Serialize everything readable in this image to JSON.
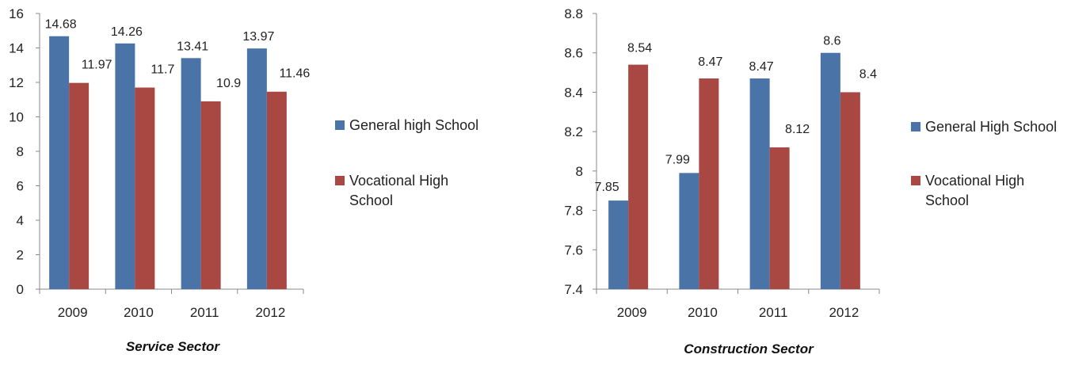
{
  "colors": {
    "general": "#4a74a8",
    "vocational": "#a94843",
    "axis": "#888888",
    "text": "#222222"
  },
  "chart_data": [
    {
      "type": "bar",
      "title": "Service Sector",
      "xlabel": "",
      "ylabel": "",
      "categories": [
        "2009",
        "2010",
        "2011",
        "2012"
      ],
      "ylim": [
        0,
        16
      ],
      "yticks": [
        0,
        2,
        4,
        6,
        8,
        10,
        12,
        14,
        16
      ],
      "ytick_labels": [
        "0",
        "2",
        "4",
        "6",
        "8",
        "10",
        "12",
        "14",
        "16"
      ],
      "grid": false,
      "legend_position": "right",
      "series": [
        {
          "name": "General high School",
          "color": "#4a74a8",
          "values": [
            14.68,
            14.26,
            13.41,
            13.97
          ],
          "labels": [
            "14.68",
            "14.26",
            "13.41",
            "13.97"
          ]
        },
        {
          "name": "Vocational High School",
          "legend_lines": [
            "Vocational High",
            "School"
          ],
          "color": "#a94843",
          "values": [
            11.97,
            11.7,
            10.9,
            11.46
          ],
          "labels": [
            "11.97",
            "11.7",
            "10.9",
            "11.46"
          ]
        }
      ]
    },
    {
      "type": "bar",
      "title": "Construction Sector",
      "xlabel": "",
      "ylabel": "",
      "categories": [
        "2009",
        "2010",
        "2011",
        "2012"
      ],
      "ylim": [
        7.4,
        8.8
      ],
      "yticks": [
        7.4,
        7.6,
        7.8,
        8.0,
        8.2,
        8.4,
        8.6,
        8.8
      ],
      "ytick_labels": [
        "7.4",
        "7.6",
        "7.8",
        "8",
        "8.2",
        "8.4",
        "8.6",
        "8.8"
      ],
      "grid": false,
      "legend_position": "right",
      "series": [
        {
          "name": "General High School",
          "color": "#4a74a8",
          "values": [
            7.85,
            7.99,
            8.47,
            8.6
          ],
          "labels": [
            "7.85",
            "7.99",
            "8.47",
            "8.6"
          ]
        },
        {
          "name": "Vocational High School",
          "legend_lines": [
            "Vocational High",
            "School"
          ],
          "color": "#a94843",
          "values": [
            8.54,
            8.47,
            8.12,
            8.4
          ],
          "labels": [
            "8.54",
            "8.47",
            "8.12",
            "8.4"
          ]
        }
      ]
    }
  ]
}
